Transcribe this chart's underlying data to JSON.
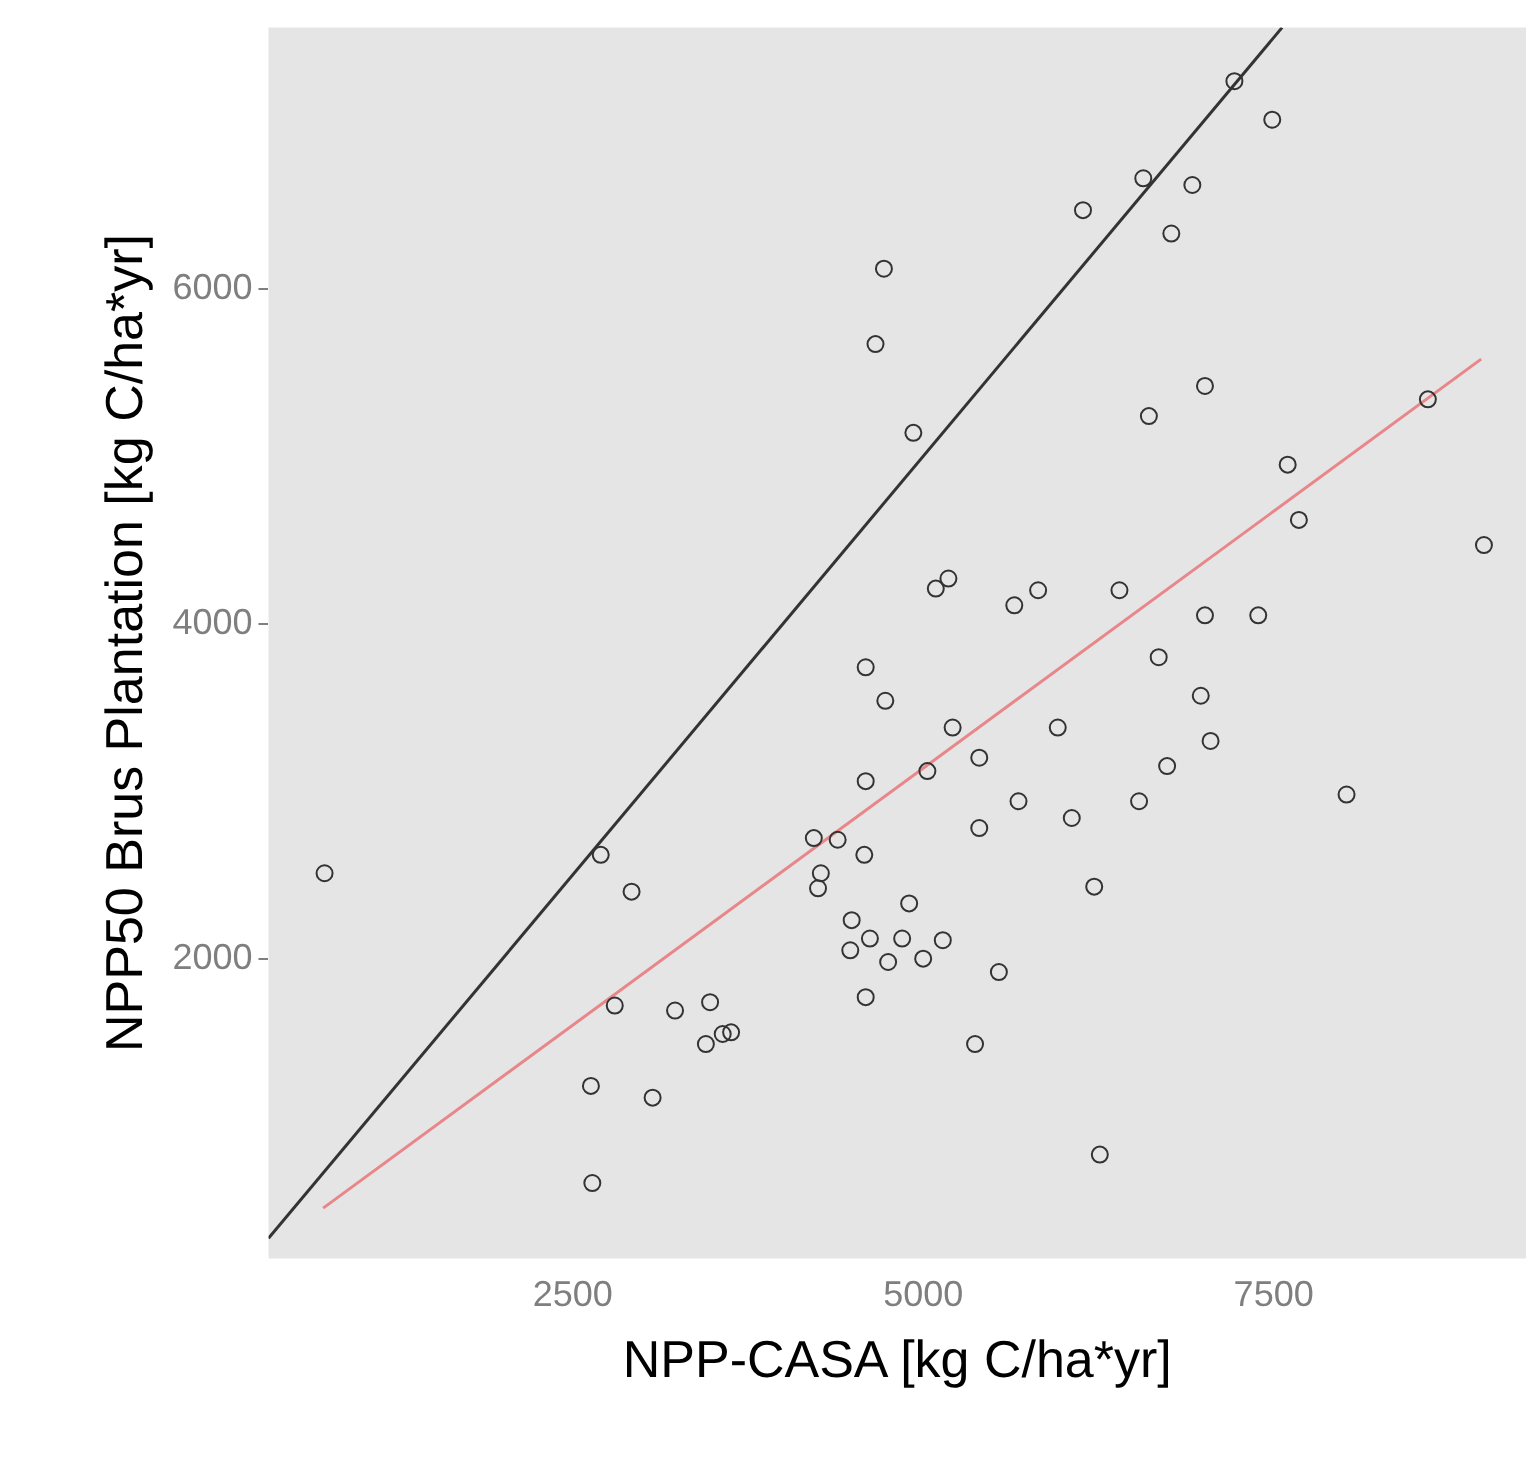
{
  "chart_data": {
    "type": "scatter",
    "xlabel": "NPP-CASA [kg C/ha*yr]",
    "ylabel": "NPP50 Brus Plantation [kg C/ha*yr]",
    "xlim": [
      330,
      9300
    ],
    "ylim": [
      210,
      7560
    ],
    "xticks": [
      2500,
      5000,
      7500
    ],
    "yticks": [
      2000,
      4000,
      6000
    ],
    "grid": false,
    "legend": false,
    "marker": "circle",
    "series": [
      {
        "type": "scatter",
        "color": "#333333",
        "x": [
          4720,
          4660,
          7220,
          7490,
          6570,
          6920,
          6140,
          6770,
          4930,
          7010,
          6610,
          8600,
          7600,
          7680,
          9000,
          5090,
          5180,
          5650,
          5820,
          6400,
          7010,
          7390,
          6680,
          4590,
          4730,
          730,
          2700,
          2920,
          4590,
          4220,
          4390,
          4580,
          4270,
          4250,
          4490,
          4620,
          4480,
          4750,
          4590,
          2800,
          3230,
          3480,
          3450,
          3570,
          3630,
          2630,
          3070,
          2640,
          6980,
          7050,
          6740,
          6540,
          5210,
          5960,
          5400,
          5030,
          5680,
          6060,
          5400,
          8020,
          6220,
          4900,
          4850,
          5140,
          5000,
          5540,
          5370,
          6260
        ],
        "values": [
          6120,
          5670,
          7240,
          7010,
          6660,
          6620,
          6470,
          6330,
          5140,
          5420,
          5240,
          5340,
          4950,
          4620,
          4470,
          4210,
          4270,
          4110,
          4200,
          4200,
          4050,
          4050,
          3800,
          3740,
          3540,
          2510,
          2620,
          2400,
          3060,
          2720,
          2710,
          2620,
          2510,
          2420,
          2230,
          2120,
          2050,
          1980,
          1770,
          1720,
          1690,
          1740,
          1490,
          1550,
          1560,
          1240,
          1170,
          660,
          3570,
          3300,
          3150,
          2940,
          3380,
          3380,
          3200,
          3120,
          2940,
          2840,
          2780,
          2980,
          2430,
          2330,
          2120,
          2110,
          2000,
          1920,
          1490,
          830
        ]
      },
      {
        "type": "line",
        "marker": "none",
        "color": "#333333",
        "x": [
          330,
          7560
        ],
        "values": [
          330,
          7560
        ]
      },
      {
        "type": "line",
        "marker": "none",
        "color": "#e8868a",
        "x": [
          720,
          8980
        ],
        "values": [
          510,
          5580
        ]
      }
    ]
  }
}
